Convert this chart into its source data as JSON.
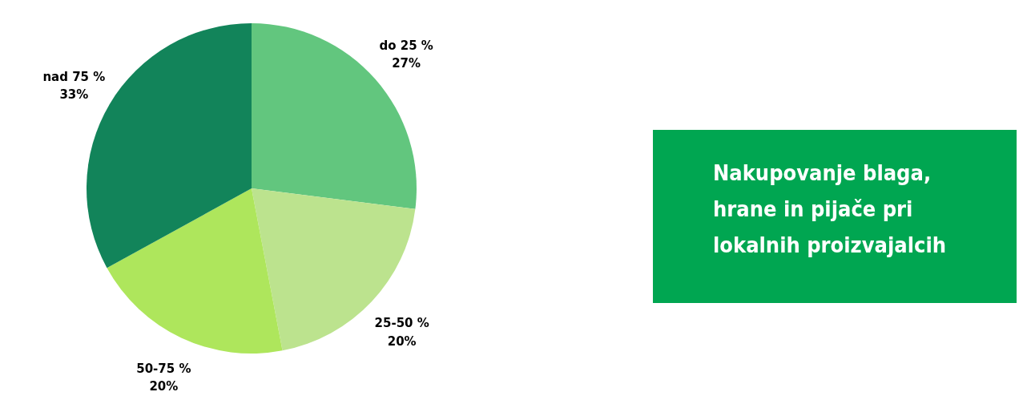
{
  "chart_data": {
    "type": "pie",
    "title": "Nakupovanje blaga, hrane in pijače pri lokalnih proizvajalcih",
    "categories": [
      "do 25 %",
      "25-50 %",
      "50-75 %",
      "nad 75 %"
    ],
    "values": [
      27,
      20,
      20,
      33
    ],
    "value_labels": [
      "27%",
      "20%",
      "20%",
      "33%"
    ],
    "colors": [
      "#62c67e",
      "#bce38e",
      "#aee65c",
      "#12845a"
    ],
    "legend": false
  }
}
